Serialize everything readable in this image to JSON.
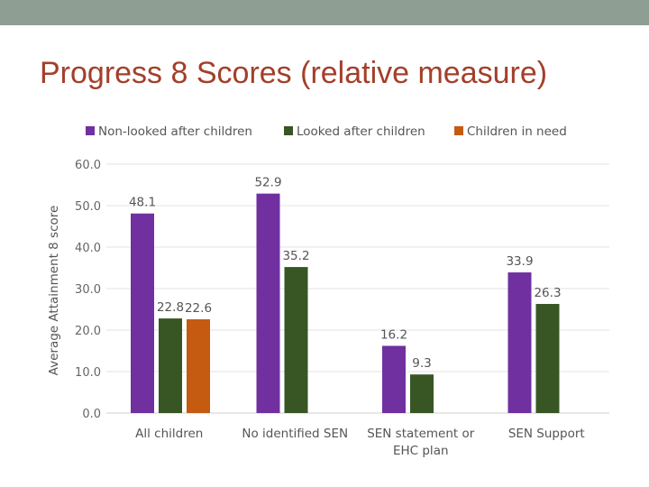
{
  "slide": {
    "title": "Progress 8 Scores (relative measure)"
  },
  "chart_data": {
    "type": "bar",
    "title": "Progress 8 Scores (relative measure)",
    "ylabel": "Average Attainment 8 score",
    "xlabel": "",
    "ylim": [
      0,
      60
    ],
    "yticks": [
      "0.0",
      "10.0",
      "20.0",
      "30.0",
      "40.0",
      "50.0",
      "60.0"
    ],
    "grid": true,
    "legend_position": "top",
    "categories": [
      [
        "All children"
      ],
      [
        "No identified SEN"
      ],
      [
        "SEN statement or",
        "EHC plan"
      ],
      [
        "SEN Support"
      ]
    ],
    "series": [
      {
        "name": "Non-looked after children",
        "color": "#7030a0",
        "values": [
          48.1,
          52.9,
          16.2,
          33.9
        ]
      },
      {
        "name": "Looked after children",
        "color": "#375623",
        "values": [
          22.8,
          35.2,
          9.3,
          26.3
        ]
      },
      {
        "name": "Children in need",
        "color": "#c55a11",
        "values": [
          22.6,
          null,
          null,
          null
        ]
      }
    ]
  }
}
